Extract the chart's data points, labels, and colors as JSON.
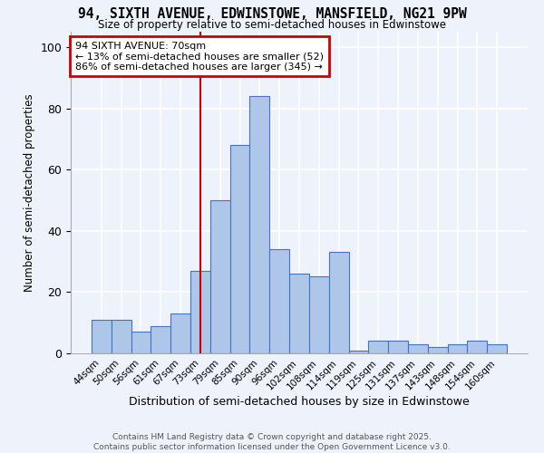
{
  "title": "94, SIXTH AVENUE, EDWINSTOWE, MANSFIELD, NG21 9PW",
  "subtitle": "Size of property relative to semi-detached houses in Edwinstowe",
  "xlabel": "Distribution of semi-detached houses by size in Edwinstowe",
  "ylabel": "Number of semi-detached properties",
  "categories": [
    "44sqm",
    "50sqm",
    "56sqm",
    "61sqm",
    "67sqm",
    "73sqm",
    "79sqm",
    "85sqm",
    "90sqm",
    "96sqm",
    "102sqm",
    "108sqm",
    "114sqm",
    "119sqm",
    "125sqm",
    "131sqm",
    "137sqm",
    "143sqm",
    "148sqm",
    "154sqm",
    "160sqm"
  ],
  "values": [
    11,
    11,
    7,
    9,
    13,
    27,
    50,
    68,
    84,
    34,
    26,
    25,
    33,
    1,
    4,
    4,
    3,
    2,
    3,
    4,
    3
  ],
  "bar_color": "#aec6e8",
  "bar_edge_color": "#4472c4",
  "background_color": "#eef2fb",
  "grid_color": "#ffffff",
  "annotation_box_text": "94 SIXTH AVENUE: 70sqm\n← 13% of semi-detached houses are smaller (52)\n86% of semi-detached houses are larger (345) →",
  "annotation_box_color": "#cc0000",
  "red_line_x": 5.0,
  "ylim": [
    0,
    105
  ],
  "yticks": [
    0,
    20,
    40,
    60,
    80,
    100
  ],
  "footer": "Contains HM Land Registry data © Crown copyright and database right 2025.\nContains public sector information licensed under the Open Government Licence v3.0."
}
